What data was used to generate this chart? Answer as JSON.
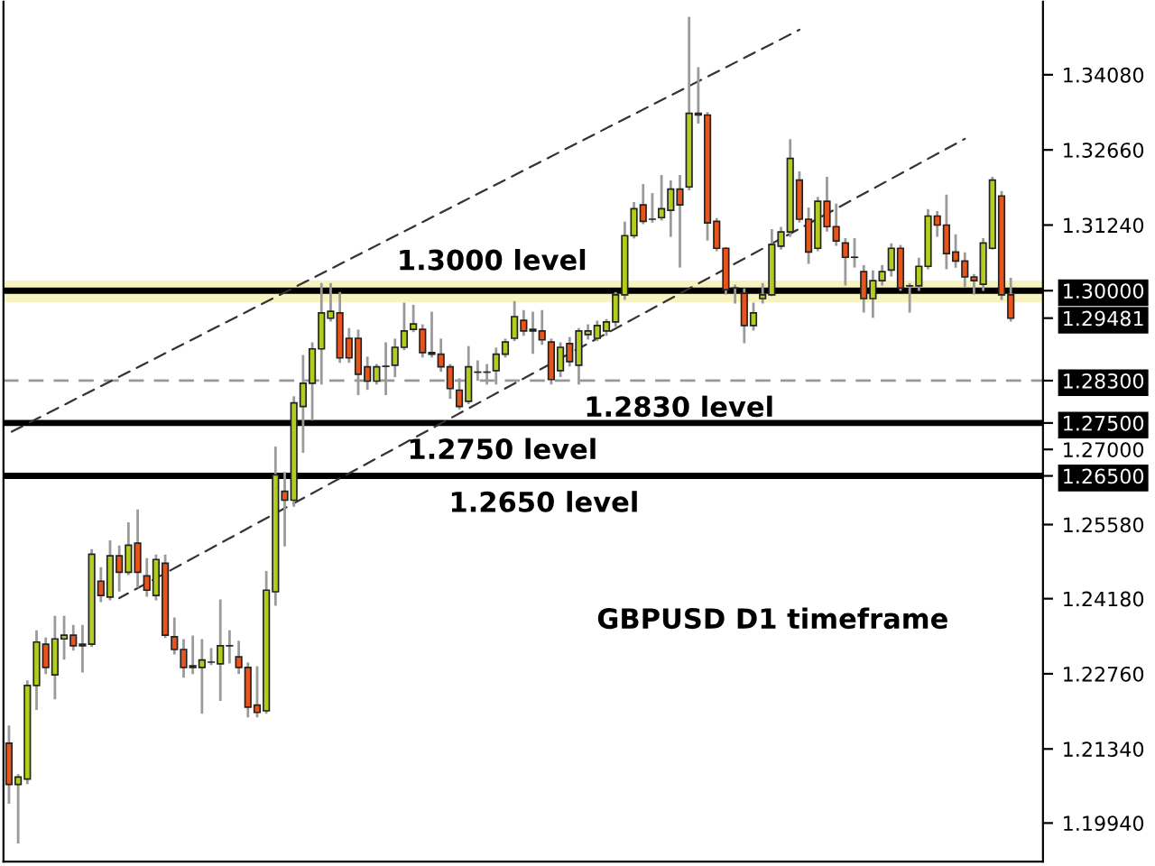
{
  "chart_data": {
    "type": "candlestick",
    "categories": [
      null,
      null,
      null,
      null,
      null,
      null,
      null,
      null,
      null,
      null,
      null,
      null,
      null,
      null,
      null,
      null,
      null,
      null,
      null,
      null,
      null,
      null,
      null,
      null,
      null,
      null,
      null,
      null,
      null,
      null,
      null,
      null,
      null,
      null,
      null,
      null,
      null,
      null,
      null,
      null,
      null,
      null,
      null,
      null,
      null,
      null,
      null,
      null,
      null,
      null,
      null,
      null,
      null,
      null,
      null,
      null,
      null,
      null,
      null,
      null,
      null,
      null,
      null,
      null,
      null,
      null,
      null,
      null,
      null,
      null,
      null,
      null,
      null,
      null,
      null,
      null,
      null,
      null,
      null,
      null,
      null,
      null,
      null,
      null,
      null,
      null,
      null,
      null,
      null,
      null,
      null,
      null,
      null,
      null,
      null,
      null,
      null,
      null,
      null,
      null,
      null,
      null,
      null,
      null,
      null,
      null,
      null,
      null,
      null,
      null
    ],
    "ohlc": [
      [
        1.2145,
        1.2176,
        1.2033,
        1.2067
      ],
      [
        1.2067,
        1.2084,
        1.1958,
        1.2081
      ],
      [
        1.2077,
        1.2261,
        1.207,
        1.2254
      ],
      [
        1.2254,
        1.2356,
        1.221,
        1.2336
      ],
      [
        1.2332,
        1.2342,
        1.2278,
        1.2288
      ],
      [
        1.2274,
        1.2383,
        1.223,
        1.2342
      ],
      [
        1.2342,
        1.2383,
        1.2305,
        1.2349
      ],
      [
        1.2349,
        1.2366,
        1.2322,
        1.2329
      ],
      [
        1.2332,
        1.2366,
        1.2281,
        1.2329
      ],
      [
        1.2332,
        1.2509,
        1.2329,
        1.2502
      ],
      [
        1.2451,
        1.2475,
        1.2414,
        1.2424
      ],
      [
        1.2421,
        1.2526,
        1.2417,
        1.2499
      ],
      [
        1.2499,
        1.2516,
        1.2434,
        1.2468
      ],
      [
        1.2468,
        1.256,
        1.2465,
        1.2519
      ],
      [
        1.2523,
        1.2584,
        1.2441,
        1.2468
      ],
      [
        1.2461,
        1.2492,
        1.2424,
        1.2434
      ],
      [
        1.2424,
        1.2499,
        1.2417,
        1.2492
      ],
      [
        1.2485,
        1.2499,
        1.2346,
        1.2349
      ],
      [
        1.2346,
        1.238,
        1.2315,
        1.2322
      ],
      [
        1.2322,
        1.2339,
        1.2271,
        1.2288
      ],
      [
        1.2291,
        1.2346,
        1.2278,
        1.2288
      ],
      [
        1.2288,
        1.2339,
        1.2203,
        1.2302
      ],
      [
        1.2298,
        1.2322,
        1.2295,
        1.2298
      ],
      [
        1.2295,
        1.2414,
        1.2227,
        1.2329
      ],
      [
        1.2329,
        1.2356,
        1.2298,
        1.2329
      ],
      [
        1.2308,
        1.2336,
        1.2278,
        1.2288
      ],
      [
        1.2288,
        1.2295,
        1.2196,
        1.2213
      ],
      [
        1.2217,
        1.2288,
        1.2196,
        1.2203
      ],
      [
        1.2206,
        1.2468,
        1.2203,
        1.2434
      ],
      [
        1.2431,
        1.2703,
        1.2407,
        1.2652
      ],
      [
        1.2621,
        1.2655,
        1.2519,
        1.2604
      ],
      [
        1.2604,
        1.2798,
        1.2594,
        1.2788
      ],
      [
        1.2781,
        1.2876,
        1.2696,
        1.2825
      ],
      [
        1.2825,
        1.29,
        1.2757,
        1.289
      ],
      [
        1.289,
        1.3012,
        1.2825,
        1.2958
      ],
      [
        1.2948,
        1.3012,
        1.2944,
        1.2961
      ],
      [
        1.2958,
        1.2995,
        1.2866,
        1.2873
      ],
      [
        1.291,
        1.2927,
        1.2866,
        1.2873
      ],
      [
        1.291,
        1.2924,
        1.2805,
        1.2842
      ],
      [
        1.2856,
        1.2873,
        1.2815,
        1.2829
      ],
      [
        1.2829,
        1.2859,
        1.2825,
        1.2856
      ],
      [
        1.2857,
        1.29,
        1.2805,
        1.2857
      ],
      [
        1.2859,
        1.2907,
        1.2839,
        1.2893
      ],
      [
        1.2893,
        1.2975,
        1.289,
        1.2924
      ],
      [
        1.2927,
        1.2971,
        1.2924,
        1.2937
      ],
      [
        1.2927,
        1.2934,
        1.2876,
        1.2883
      ],
      [
        1.2883,
        1.2958,
        1.2876,
        1.288
      ],
      [
        1.288,
        1.2907,
        1.2849,
        1.2856
      ],
      [
        1.2856,
        1.2859,
        1.2798,
        1.2815
      ],
      [
        1.2812,
        1.2832,
        1.2778,
        1.2781
      ],
      [
        1.2791,
        1.2893,
        1.2788,
        1.2856
      ],
      [
        1.2846,
        1.2866,
        1.2832,
        1.2846
      ],
      [
        1.2846,
        1.2859,
        1.2825,
        1.2846
      ],
      [
        1.2849,
        1.289,
        1.2825,
        1.288
      ],
      [
        1.288,
        1.2907,
        1.2876,
        1.2903
      ],
      [
        1.291,
        1.2978,
        1.2907,
        1.2951
      ],
      [
        1.2944,
        1.2961,
        1.2917,
        1.2924
      ],
      [
        1.2927,
        1.2958,
        1.2883,
        1.2924
      ],
      [
        1.2924,
        1.2961,
        1.29,
        1.2907
      ],
      [
        1.2903,
        1.2907,
        1.2825,
        1.2832
      ],
      [
        1.2849,
        1.29,
        1.2839,
        1.2893
      ],
      [
        1.29,
        1.291,
        1.2859,
        1.2866
      ],
      [
        1.2859,
        1.2927,
        1.2825,
        1.2924
      ],
      [
        1.2917,
        1.2934,
        1.291,
        1.2924
      ],
      [
        1.291,
        1.2941,
        1.2907,
        1.2934
      ],
      [
        1.2924,
        1.2944,
        1.2917,
        1.2941
      ],
      [
        1.2941,
        1.2995,
        1.2934,
        1.2992
      ],
      [
        1.2992,
        1.3128,
        1.2985,
        1.3104
      ],
      [
        1.3104,
        1.3165,
        1.3101,
        1.3155
      ],
      [
        1.3162,
        1.3199,
        1.3128,
        1.3131
      ],
      [
        1.3135,
        1.3182,
        1.3131,
        1.3135
      ],
      [
        1.3138,
        1.3216,
        1.3135,
        1.3155
      ],
      [
        1.3152,
        1.3206,
        1.3104,
        1.3192
      ],
      [
        1.3192,
        1.3216,
        1.3046,
        1.3162
      ],
      [
        1.3196,
        1.3515,
        1.3192,
        1.3335
      ],
      [
        1.3335,
        1.342,
        1.3318,
        1.3332
      ],
      [
        1.3332,
        1.3335,
        1.3097,
        1.3128
      ],
      [
        1.3131,
        1.3135,
        1.3077,
        1.308
      ],
      [
        1.308,
        1.308,
        1.2995,
        1.3002
      ],
      [
        1.3005,
        1.3009,
        1.2978,
        1.3005
      ],
      [
        1.2995,
        1.3002,
        1.2903,
        1.2934
      ],
      [
        1.2934,
        1.2975,
        1.2927,
        1.2958
      ],
      [
        1.2985,
        1.3012,
        1.2978,
        1.2992
      ],
      [
        1.2992,
        1.3114,
        1.2992,
        1.3087
      ],
      [
        1.3084,
        1.3118,
        1.308,
        1.3111
      ],
      [
        1.3111,
        1.3284,
        1.3104,
        1.325
      ],
      [
        1.3209,
        1.3223,
        1.3131,
        1.3135
      ],
      [
        1.3135,
        1.3155,
        1.3053,
        1.3073
      ],
      [
        1.308,
        1.3175,
        1.3077,
        1.3169
      ],
      [
        1.3169,
        1.3213,
        1.3114,
        1.3121
      ],
      [
        1.3121,
        1.3162,
        1.3087,
        1.3094
      ],
      [
        1.309,
        1.3097,
        1.3012,
        1.3063
      ],
      [
        1.3063,
        1.3097,
        1.3046,
        1.3063
      ],
      [
        1.3036,
        1.3046,
        1.2961,
        1.2985
      ],
      [
        1.2985,
        1.3036,
        1.2951,
        1.3019
      ],
      [
        1.3019,
        1.3046,
        1.3012,
        1.3036
      ],
      [
        1.3039,
        1.3087,
        1.3029,
        1.308
      ],
      [
        1.308,
        1.3084,
        1.3002,
        1.3005
      ],
      [
        1.3009,
        1.3012,
        1.2961,
        1.3009
      ],
      [
        1.3009,
        1.306,
        1.3002,
        1.3046
      ],
      [
        1.3046,
        1.3152,
        1.3043,
        1.3141
      ],
      [
        1.3141,
        1.3148,
        1.3104,
        1.3124
      ],
      [
        1.3124,
        1.3179,
        1.3043,
        1.307
      ],
      [
        1.3073,
        1.3104,
        1.3046,
        1.3056
      ],
      [
        1.3056,
        1.307,
        1.3009,
        1.3026
      ],
      [
        1.3026,
        1.3029,
        1.2995,
        1.3019
      ],
      [
        1.3012,
        1.3097,
        1.3002,
        1.309
      ],
      [
        1.308,
        1.3213,
        1.308,
        1.3209
      ],
      [
        1.3179,
        1.3186,
        1.2985,
        1.2992
      ],
      [
        1.2992,
        1.3022,
        1.2944,
        1.2948
      ]
    ],
    "colors": [
      "#e8551c",
      "#b3cc1d",
      "#b3cc1d",
      "#b3cc1d",
      "#e8551c",
      "#b3cc1d",
      "#b3cc1d",
      "#e8551c",
      "#e8551c",
      "#b3cc1d",
      "#e8551c",
      "#b3cc1d",
      "#e8551c",
      "#b3cc1d",
      "#e8551c",
      "#e8551c",
      "#b3cc1d",
      "#e8551c",
      "#e8551c",
      "#e8551c",
      "#e8551c",
      "#b3cc1d",
      "#b3cc1d",
      "#b3cc1d",
      "#b3cc1d",
      "#e8551c",
      "#e8551c",
      "#e8551c",
      "#b3cc1d",
      "#b3cc1d",
      "#e8551c",
      "#b3cc1d",
      "#b3cc1d",
      "#b3cc1d",
      "#b3cc1d",
      "#b3cc1d",
      "#e8551c",
      "#e8551c",
      "#e8551c",
      "#e8551c",
      "#b3cc1d",
      "#b3cc1d",
      "#b3cc1d",
      "#b3cc1d",
      "#b3cc1d",
      "#e8551c",
      "#e8551c",
      "#e8551c",
      "#e8551c",
      "#e8551c",
      "#b3cc1d",
      "#b3cc1d",
      "#b3cc1d",
      "#b3cc1d",
      "#b3cc1d",
      "#b3cc1d",
      "#e8551c",
      "#e8551c",
      "#e8551c",
      "#e8551c",
      "#b3cc1d",
      "#e8551c",
      "#b3cc1d",
      "#b3cc1d",
      "#b3cc1d",
      "#b3cc1d",
      "#b3cc1d",
      "#b3cc1d",
      "#b3cc1d",
      "#e8551c",
      "#b3cc1d",
      "#b3cc1d",
      "#b3cc1d",
      "#e8551c",
      "#b3cc1d",
      "#e8551c",
      "#e8551c",
      "#e8551c",
      "#e8551c",
      "#b3cc1d",
      "#e8551c",
      "#b3cc1d",
      "#b3cc1d",
      "#b3cc1d",
      "#b3cc1d",
      "#b3cc1d",
      "#e8551c",
      "#e8551c",
      "#b3cc1d",
      "#e8551c",
      "#e8551c",
      "#e8551c",
      "#b3cc1d",
      "#e8551c",
      "#b3cc1d",
      "#b3cc1d",
      "#b3cc1d",
      "#e8551c",
      "#b3cc1d",
      "#b3cc1d",
      "#b3cc1d",
      "#e8551c",
      "#e8551c",
      "#e8551c",
      "#e8551c",
      "#e8551c",
      "#b3cc1d",
      "#b3cc1d",
      "#e8551c",
      "#e8551c"
    ],
    "series": [
      {
        "type": "line",
        "values": [
          1.2731,
          null,
          null,
          null,
          null,
          null,
          null,
          null,
          null,
          null,
          null,
          null,
          null,
          null,
          null,
          null,
          null,
          null,
          null,
          null,
          null,
          null,
          null,
          null,
          null,
          null,
          null,
          null,
          null,
          null,
          null,
          null,
          null,
          null,
          null,
          null,
          null,
          null,
          null,
          null,
          null,
          null,
          null,
          null,
          null,
          null,
          null,
          null,
          null,
          null,
          null,
          null,
          null,
          null,
          null,
          null,
          null,
          null,
          null,
          null,
          null,
          null,
          null,
          null,
          null,
          null,
          null,
          null,
          null,
          null,
          null,
          null,
          null,
          null,
          null,
          null,
          null,
          null,
          null,
          null,
          null,
          null,
          null,
          null,
          null,
          null,
          1.3493,
          null,
          null,
          null,
          null,
          null,
          null,
          null,
          null,
          null,
          null,
          null,
          null,
          null,
          null,
          null,
          null,
          null,
          null,
          null,
          null,
          null,
          null,
          null
        ],
        "color": "#333333",
        "line_style": "dashed"
      },
      {
        "type": "line",
        "values": [
          null,
          null,
          null,
          null,
          null,
          null,
          null,
          null,
          null,
          null,
          null,
          null,
          1.2419,
          null,
          null,
          null,
          null,
          null,
          null,
          null,
          null,
          null,
          null,
          null,
          null,
          null,
          null,
          null,
          null,
          null,
          null,
          null,
          null,
          null,
          null,
          null,
          null,
          null,
          null,
          null,
          null,
          null,
          null,
          null,
          null,
          null,
          null,
          null,
          null,
          null,
          null,
          null,
          null,
          null,
          null,
          null,
          null,
          null,
          null,
          null,
          null,
          null,
          null,
          null,
          null,
          null,
          null,
          null,
          null,
          null,
          null,
          null,
          null,
          null,
          null,
          null,
          null,
          null,
          null,
          null,
          null,
          null,
          null,
          null,
          null,
          null,
          null,
          null,
          null,
          null,
          null,
          null,
          null,
          null,
          null,
          null,
          null,
          null,
          null,
          null,
          null,
          null,
          null,
          null,
          1.3287,
          null,
          null,
          null,
          null,
          null
        ],
        "color": "#333333",
        "line_style": "dashed"
      }
    ],
    "ylim": [
      1.1921,
      1.3546
    ],
    "yticks": [
      {
        "value": 1.1994,
        "label": "1.19940"
      },
      {
        "value": 1.2134,
        "label": "1.21340"
      },
      {
        "value": 1.2276,
        "label": "1.22760"
      },
      {
        "value": 1.2418,
        "label": "1.24180"
      },
      {
        "value": 1.2558,
        "label": "1.25580"
      },
      {
        "value": 1.265,
        "label": "1.26500"
      },
      {
        "value": 1.27,
        "label": "1.27000"
      },
      {
        "value": 1.275,
        "label": "1.27500"
      },
      {
        "value": 1.283,
        "label": "1.28300"
      },
      {
        "value": 1.29481,
        "label": "1.29481"
      },
      {
        "value": 1.3,
        "label": "1.30000"
      },
      {
        "value": 1.3124,
        "label": "1.31240"
      },
      {
        "value": 1.3266,
        "label": "1.32660"
      },
      {
        "value": 1.3408,
        "label": "1.34080"
      }
    ],
    "ref_lines": [
      {
        "axis": "y",
        "value": 1.3,
        "label": "1.3000 level",
        "color": "#000000",
        "line_style": "solid"
      },
      {
        "axis": "y",
        "value": 1.283,
        "label": "1.2830 level",
        "color": "#999999",
        "line_style": "dashed"
      },
      {
        "axis": "y",
        "value": 1.275,
        "label": "1.2750 level",
        "color": "#000000",
        "line_style": "solid"
      },
      {
        "axis": "y",
        "value": 1.265,
        "label": "1.2650 level",
        "color": "#000000",
        "line_style": "solid"
      }
    ],
    "bands": [
      {
        "axis": "y",
        "from": 1.2978,
        "to": 1.3019,
        "color": "#f7f3c0"
      }
    ],
    "annotations": [
      "GBPUSD D1 timeframe"
    ],
    "grid": false,
    "legend": false
  }
}
